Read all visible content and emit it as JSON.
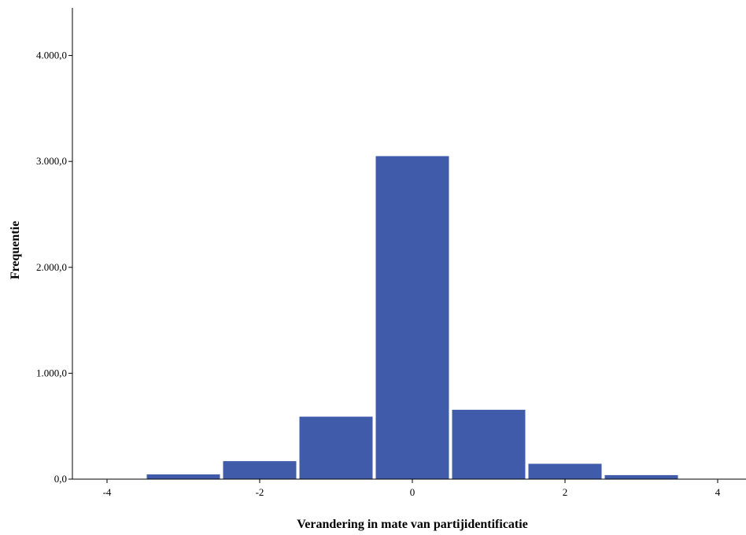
{
  "chart_data": {
    "type": "bar",
    "title": "",
    "xlabel": "Verandering in mate van partijidentificatie",
    "ylabel": "Frequentie",
    "bins": [
      {
        "center": -4,
        "value": 0
      },
      {
        "center": -3,
        "value": 45
      },
      {
        "center": -2,
        "value": 170
      },
      {
        "center": -1,
        "value": 590
      },
      {
        "center": 0,
        "value": 3050
      },
      {
        "center": 1,
        "value": 655
      },
      {
        "center": 2,
        "value": 145
      },
      {
        "center": 3,
        "value": 38
      },
      {
        "center": 4,
        "value": 0
      }
    ],
    "xticks": [
      {
        "value": -4,
        "label": "-4"
      },
      {
        "value": -2,
        "label": "-2"
      },
      {
        "value": 0,
        "label": "0"
      },
      {
        "value": 2,
        "label": "2"
      },
      {
        "value": 4,
        "label": "4"
      }
    ],
    "yticks": [
      {
        "value": 0,
        "label": "0,0"
      },
      {
        "value": 1000,
        "label": "1.000,0"
      },
      {
        "value": 2000,
        "label": "2.000,0"
      },
      {
        "value": 3000,
        "label": "3.000,0"
      },
      {
        "value": 4000,
        "label": "4.000,0"
      }
    ],
    "ylim": [
      0,
      4450
    ],
    "xlim": [
      -4.35,
      4.35
    ],
    "bar_color": "#3f5ba9",
    "grid": false,
    "legend": "none"
  }
}
